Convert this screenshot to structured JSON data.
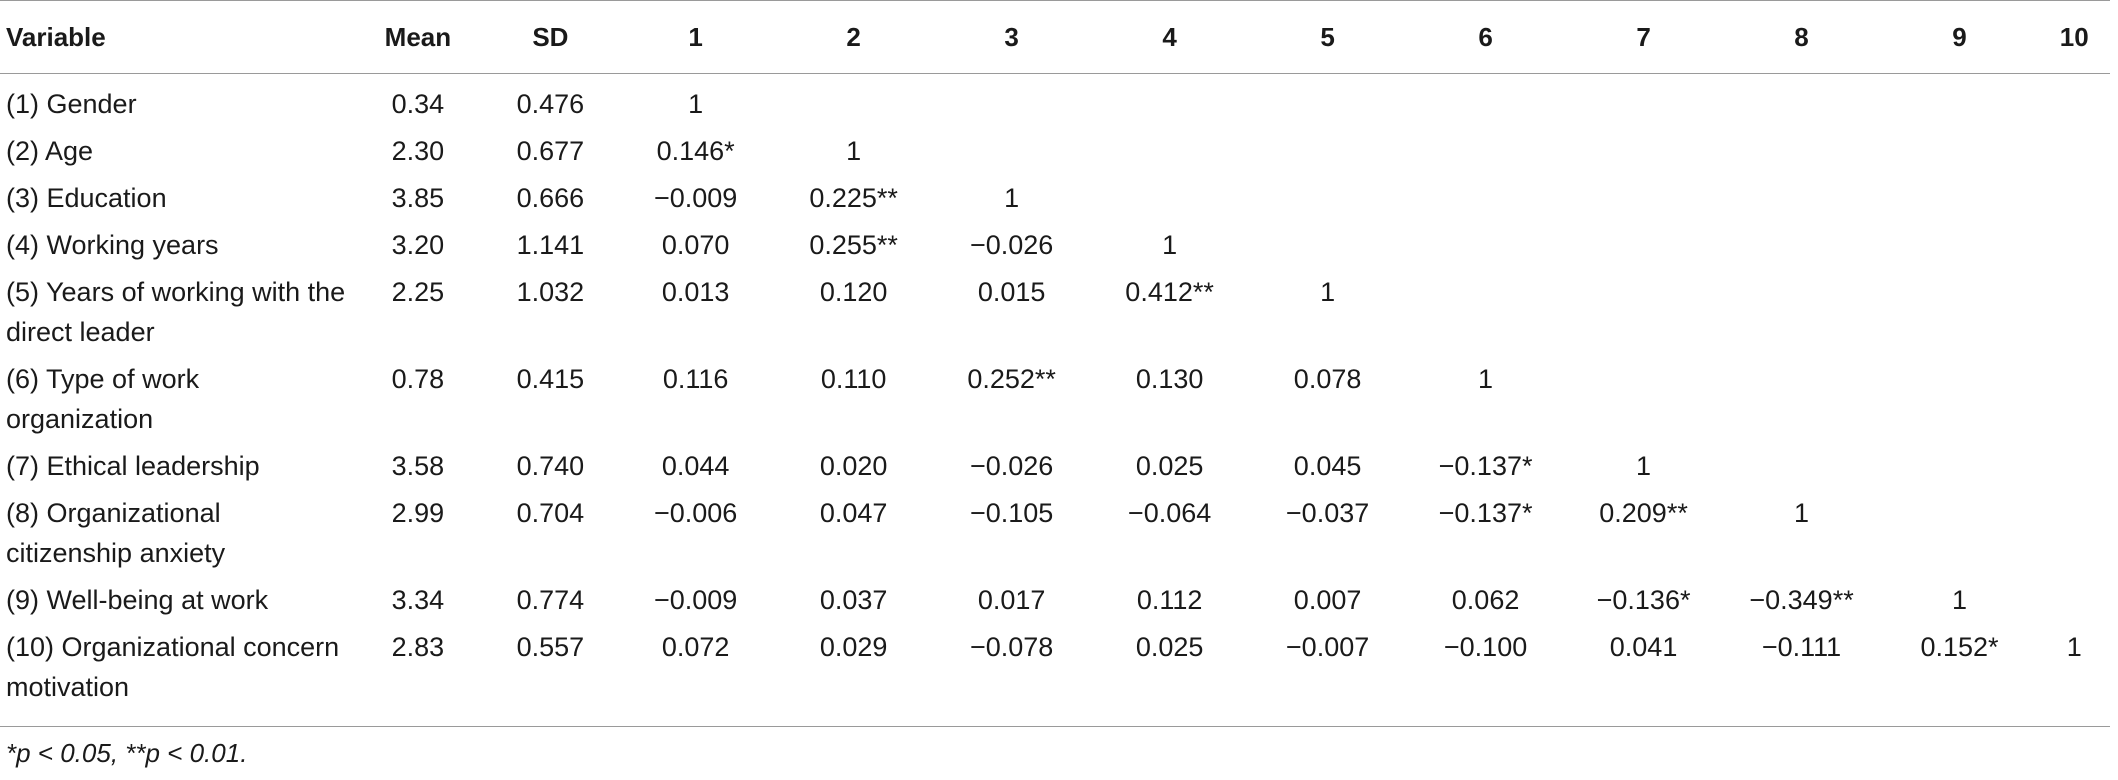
{
  "table": {
    "headers": [
      "Variable",
      "Mean",
      "SD",
      "1",
      "2",
      "3",
      "4",
      "5",
      "6",
      "7",
      "8",
      "9",
      "10"
    ],
    "rows": [
      {
        "variable": "(1) Gender",
        "mean": "0.34",
        "sd": "0.476",
        "cells": [
          "1",
          "",
          "",
          "",
          "",
          "",
          "",
          "",
          "",
          ""
        ]
      },
      {
        "variable": "(2) Age",
        "mean": "2.30",
        "sd": "0.677",
        "cells": [
          "0.146*",
          "1",
          "",
          "",
          "",
          "",
          "",
          "",
          "",
          ""
        ]
      },
      {
        "variable": "(3) Education",
        "mean": "3.85",
        "sd": "0.666",
        "cells": [
          "−0.009",
          "0.225**",
          "1",
          "",
          "",
          "",
          "",
          "",
          "",
          ""
        ]
      },
      {
        "variable": "(4) Working years",
        "mean": "3.20",
        "sd": "1.141",
        "cells": [
          "0.070",
          "0.255**",
          "−0.026",
          "1",
          "",
          "",
          "",
          "",
          "",
          ""
        ]
      },
      {
        "variable": "(5) Years of working with the direct leader",
        "mean": "2.25",
        "sd": "1.032",
        "cells": [
          "0.013",
          "0.120",
          "0.015",
          "0.412**",
          "1",
          "",
          "",
          "",
          "",
          ""
        ]
      },
      {
        "variable": "(6) Type of work organization",
        "mean": "0.78",
        "sd": "0.415",
        "cells": [
          "0.116",
          "0.110",
          "0.252**",
          "0.130",
          "0.078",
          "1",
          "",
          "",
          "",
          ""
        ]
      },
      {
        "variable": "(7) Ethical leadership",
        "mean": "3.58",
        "sd": "0.740",
        "cells": [
          "0.044",
          "0.020",
          "−0.026",
          "0.025",
          "0.045",
          "−0.137*",
          "1",
          "",
          "",
          ""
        ]
      },
      {
        "variable": "(8) Organizational citizenship anxiety",
        "mean": "2.99",
        "sd": "0.704",
        "cells": [
          "−0.006",
          "0.047",
          "−0.105",
          "−0.064",
          "−0.037",
          "−0.137*",
          "0.209**",
          "1",
          "",
          ""
        ]
      },
      {
        "variable": "(9) Well-being at work",
        "mean": "3.34",
        "sd": "0.774",
        "cells": [
          "−0.009",
          "0.037",
          "0.017",
          "0.112",
          "0.007",
          "0.062",
          "−0.136*",
          "−0.349**",
          "1",
          ""
        ]
      },
      {
        "variable": "(10) Organizational concern motivation",
        "mean": "2.83",
        "sd": "0.557",
        "cells": [
          "0.072",
          "0.029",
          "−0.078",
          "0.025",
          "−0.007",
          "−0.100",
          "0.041",
          "−0.111",
          "0.152*",
          "1"
        ]
      }
    ]
  },
  "footnote": "*p < 0.05, **p < 0.01."
}
